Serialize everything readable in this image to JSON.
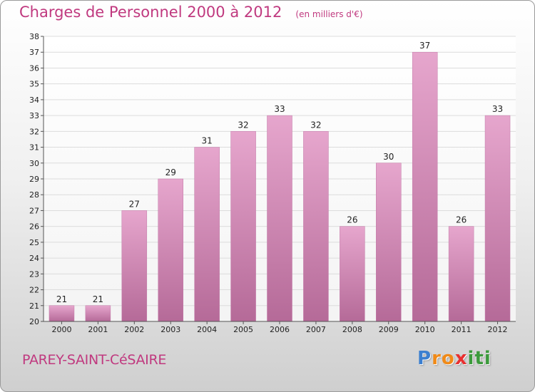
{
  "chart_data": {
    "type": "bar",
    "title": "Charges de Personnel 2000 à 2012",
    "subtitle": "(en milliers d'€)",
    "categories": [
      "2000",
      "2001",
      "2002",
      "2003",
      "2004",
      "2005",
      "2006",
      "2007",
      "2008",
      "2009",
      "2010",
      "2011",
      "2012"
    ],
    "values": [
      21,
      21,
      27,
      29,
      31,
      32,
      33,
      32,
      26,
      30,
      37,
      26,
      33
    ],
    "ylim": [
      20,
      38
    ],
    "yticks": [
      20,
      21,
      22,
      23,
      24,
      25,
      26,
      27,
      28,
      29,
      30,
      31,
      32,
      33,
      34,
      35,
      36,
      37,
      38
    ],
    "grid": true,
    "bar_color": "#d98fbc",
    "xlabel": "",
    "ylabel": ""
  },
  "footer": {
    "commune": "PAREY-SAINT-CéSAIRE",
    "brand_letters": [
      "P",
      "r",
      "o",
      "x",
      "i",
      "t",
      "i"
    ],
    "brand_colors": [
      "#3b7fd0",
      "#f08a18",
      "#f08a18",
      "#e83030",
      "#3b9a3b",
      "#3b9a3b",
      "#3b9a3b"
    ]
  },
  "colors": {
    "title": "#c0397f",
    "grid": "#dcdcdc",
    "axis": "#555555"
  }
}
